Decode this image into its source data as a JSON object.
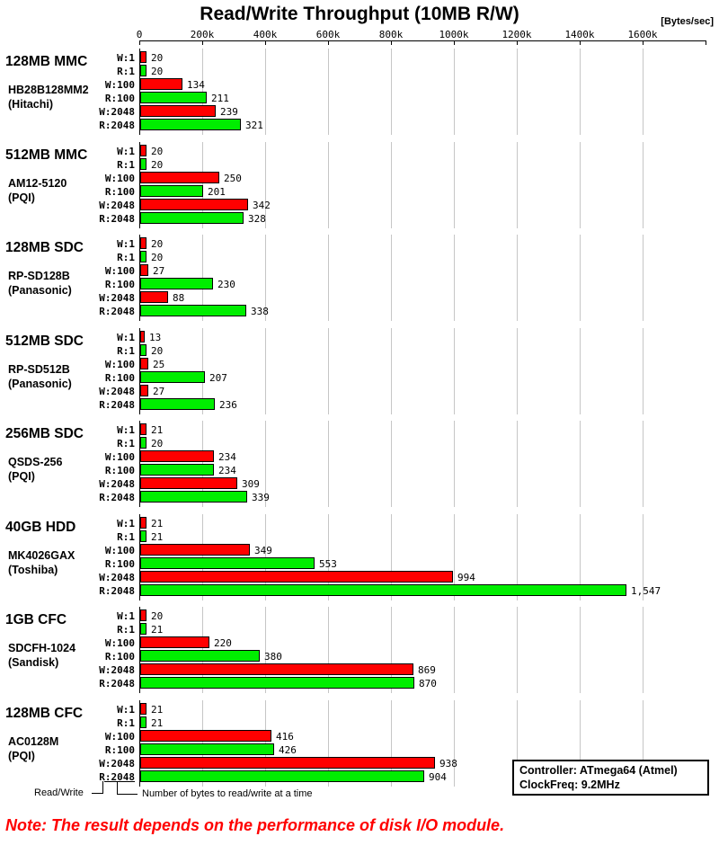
{
  "title": "Read/Write Throughput (10MB R/W)",
  "unit_label": "[Bytes/sec]",
  "chart_data": {
    "type": "bar",
    "orientation": "horizontal",
    "title": "Read/Write Throughput (10MB R/W)",
    "xlabel": "[Bytes/sec]",
    "axis_ticks": [
      "0",
      "200k",
      "400k",
      "600k",
      "800k",
      "1000k",
      "1200k",
      "1400k",
      "1600k"
    ],
    "axis_range_k": [
      0,
      1800
    ],
    "grid": true,
    "value_unit": "k (thousand Bytes/sec)",
    "row_labels": [
      "W:1",
      "R:1",
      "W:100",
      "R:100",
      "W:2048",
      "R:2048"
    ],
    "series_colors": {
      "write": "#ff0000",
      "read": "#00ee00"
    },
    "groups": [
      {
        "name": "128MB MMC",
        "model": "HB28B128MM2",
        "maker": "(Hitachi)",
        "values": [
          20,
          20,
          134,
          211,
          239,
          321
        ]
      },
      {
        "name": "512MB MMC",
        "model": "AM12-5120",
        "maker": "(PQI)",
        "values": [
          20,
          20,
          250,
          201,
          342,
          328
        ]
      },
      {
        "name": "128MB SDC",
        "model": "RP-SD128B",
        "maker": "(Panasonic)",
        "values": [
          20,
          20,
          27,
          230,
          88,
          338
        ]
      },
      {
        "name": "512MB SDC",
        "model": "RP-SD512B",
        "maker": "(Panasonic)",
        "values": [
          13,
          20,
          25,
          207,
          27,
          236
        ]
      },
      {
        "name": "256MB SDC",
        "model": "QSDS-256",
        "maker": "(PQI)",
        "values": [
          21,
          20,
          234,
          234,
          309,
          339
        ]
      },
      {
        "name": "40GB HDD",
        "model": "MK4026GAX",
        "maker": "(Toshiba)",
        "values": [
          21,
          21,
          349,
          553,
          994,
          1547
        ]
      },
      {
        "name": "1GB CFC",
        "model": "SDCFH-1024",
        "maker": "(Sandisk)",
        "values": [
          20,
          21,
          220,
          380,
          869,
          870
        ]
      },
      {
        "name": "128MB CFC",
        "model": "AC0128M",
        "maker": "(PQI)",
        "values": [
          21,
          21,
          416,
          426,
          938,
          904
        ]
      }
    ]
  },
  "legend": {
    "read_write": "Read/Write",
    "bytes_at_time": "Number of bytes to read/write at a time"
  },
  "info_box": {
    "line1": "Controller: ATmega64 (Atmel)",
    "line2": "ClockFreq: 9.2MHz"
  },
  "note": "Note: The result depends on the performance of disk I/O module."
}
